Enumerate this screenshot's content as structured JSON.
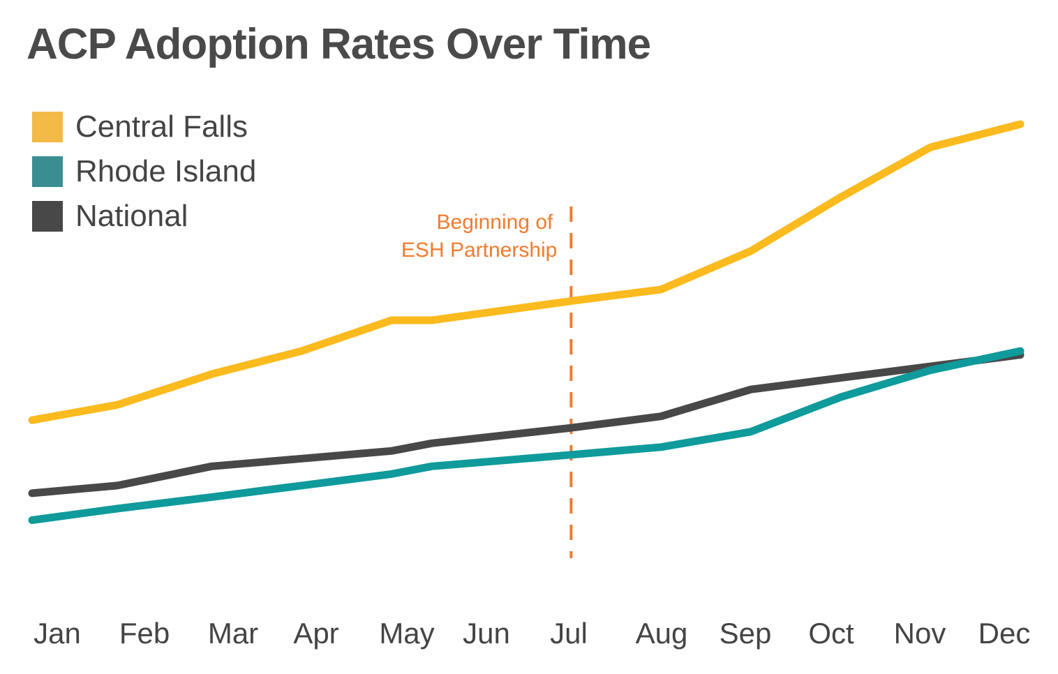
{
  "chart_data": {
    "type": "line",
    "title": "ACP Adoption Rates Over Time",
    "xlabel": "",
    "ylabel": "",
    "categories": [
      "Jan",
      "Feb",
      "Mar",
      "Apr",
      "May",
      "Jun",
      "Jul",
      "Aug",
      "Sep",
      "Oct",
      "Nov",
      "Dec"
    ],
    "x": [
      0,
      0.95,
      2.0,
      3.0,
      4.0,
      4.45,
      6.0,
      7.0,
      8.0,
      9.0,
      10.0,
      11.0
    ],
    "ylim": [
      0,
      100
    ],
    "grid": false,
    "legend_position": "top-left",
    "series": [
      {
        "name": "Central Falls",
        "color": "#FBBA1D",
        "x": [
          0,
          0.95,
          2.0,
          3.0,
          4.0,
          4.45,
          6.0,
          7.0,
          8.0,
          9.0,
          10.0,
          11.0
        ],
        "values": [
          29,
          33,
          41,
          47,
          55,
          55,
          60,
          63,
          73,
          87,
          100,
          106
        ]
      },
      {
        "name": "Rhode Island",
        "color": "#0F9A9B",
        "x": [
          0,
          0.95,
          2.0,
          3.0,
          4.0,
          4.45,
          6.0,
          7.0,
          8.0,
          9.0,
          10.0,
          11.0
        ],
        "values": [
          3,
          6,
          9,
          12,
          15,
          17,
          20,
          22,
          26,
          35,
          42,
          47
        ]
      },
      {
        "name": "National",
        "color": "#484848",
        "x": [
          0,
          0.95,
          2.0,
          3.0,
          4.0,
          4.45,
          6.0,
          7.0,
          8.0,
          9.0,
          10.0,
          11.0
        ],
        "values": [
          10,
          12,
          17,
          19,
          21,
          23,
          27,
          30,
          37,
          40,
          43,
          46
        ]
      }
    ],
    "annotations": [
      {
        "text_line1": "Beginning of",
        "text_line2": "ESH Partnership",
        "x": 6.0,
        "color": "#F07B2E",
        "style": "dashed-vertical-line"
      }
    ]
  },
  "legend": {
    "items": [
      {
        "label": "Central Falls",
        "color": "#F3BA48"
      },
      {
        "label": "Rhode Island",
        "color": "#3A8E91"
      },
      {
        "label": "National",
        "color": "#484848"
      }
    ]
  }
}
